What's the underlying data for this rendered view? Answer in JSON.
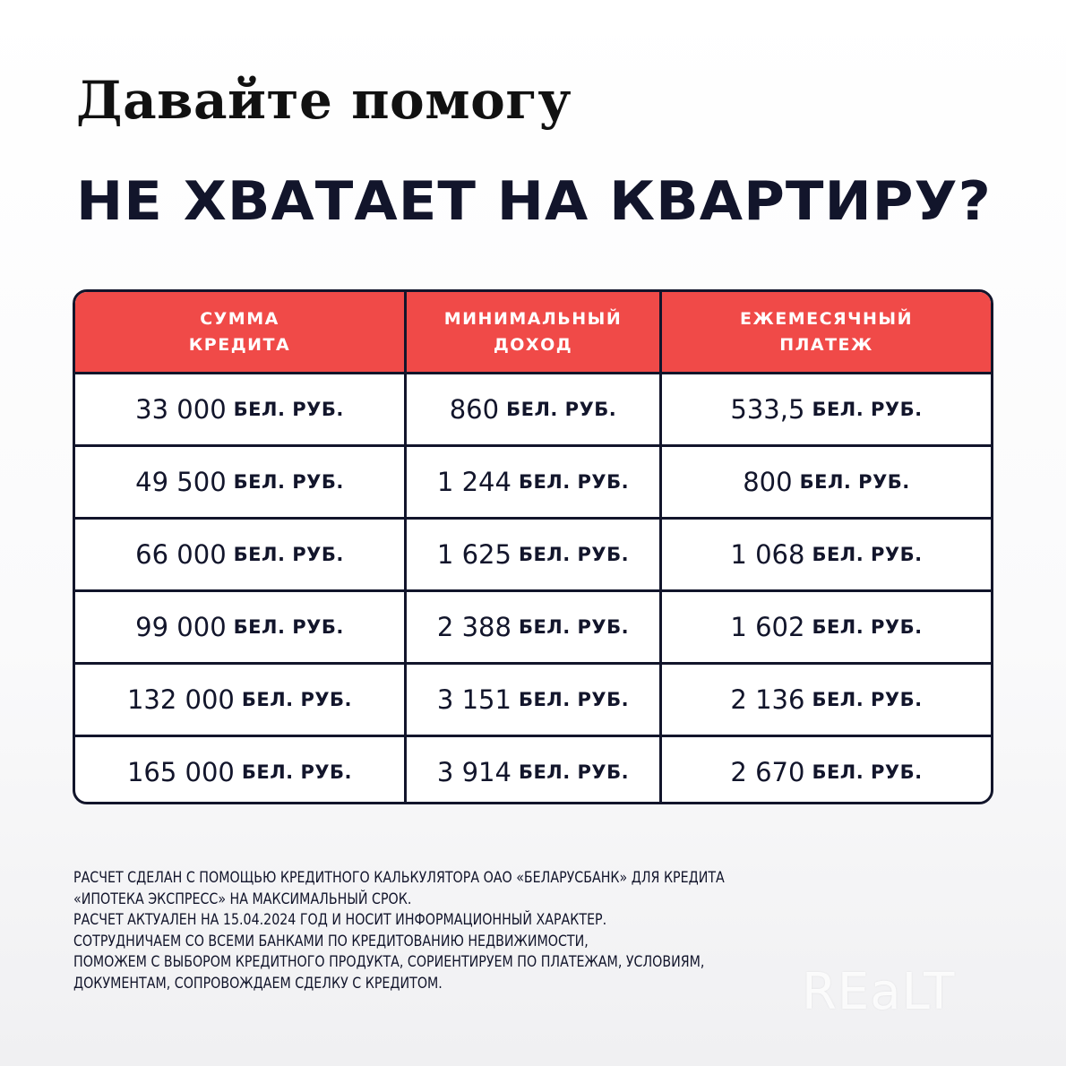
{
  "title_line1": "Давайте помогу",
  "title_line2": "НЕ ХВАТАЕТ НА КВАРТИРУ?",
  "table": {
    "headers": [
      "СУММА\nКРЕДИТА",
      "МИНИМАЛЬНЫЙ\nДОХОД",
      "ЕЖЕМЕСЯЧНЫЙ\nПЛАТЕЖ"
    ],
    "unit": "БЕЛ. РУБ.",
    "rows": [
      [
        "33 000",
        "860",
        "533,5"
      ],
      [
        "49 500",
        "1 244",
        "800"
      ],
      [
        "66 000",
        "1 625",
        "1 068"
      ],
      [
        "99 000",
        "2 388",
        "1 602"
      ],
      [
        "132 000",
        "3 151",
        "2 136"
      ],
      [
        "165 000",
        "3 914",
        "2 670"
      ]
    ]
  },
  "footnote": [
    "РАСЧЕТ СДЕЛАН С ПОМОЩЬЮ КРЕДИТНОГО КАЛЬКУЛЯТОРА ОАО «БЕЛАРУСБАНК» ДЛЯ КРЕДИТА",
    "«ИПОТЕКА ЭКСПРЕСС» НА МАКСИМАЛЬНЫЙ СРОК.",
    "РАСЧЕТ АКТУАЛЕН НА 15.04.2024 ГОД И НОСИТ ИНФОРМАЦИОННЫЙ ХАРАКТЕР.",
    "СОТРУДНИЧАЕМ СО ВСЕМИ БАНКАМИ ПО КРЕДИТОВАНИЮ НЕДВИЖИМОСТИ,",
    "ПОМОЖЕМ С ВЫБОРОМ КРЕДИТНОГО ПРОДУКТА, СОРИЕНТИРУЕМ ПО ПЛАТЕЖАМ, УСЛОВИЯМ,",
    "ДОКУМЕНТАМ, СОПРОВОЖДАЕМ СДЕЛКУ С КРЕДИТОМ."
  ],
  "watermark": "REaLT",
  "colors": {
    "header_red": "#f04a48",
    "dark_navy": "#12152b"
  }
}
